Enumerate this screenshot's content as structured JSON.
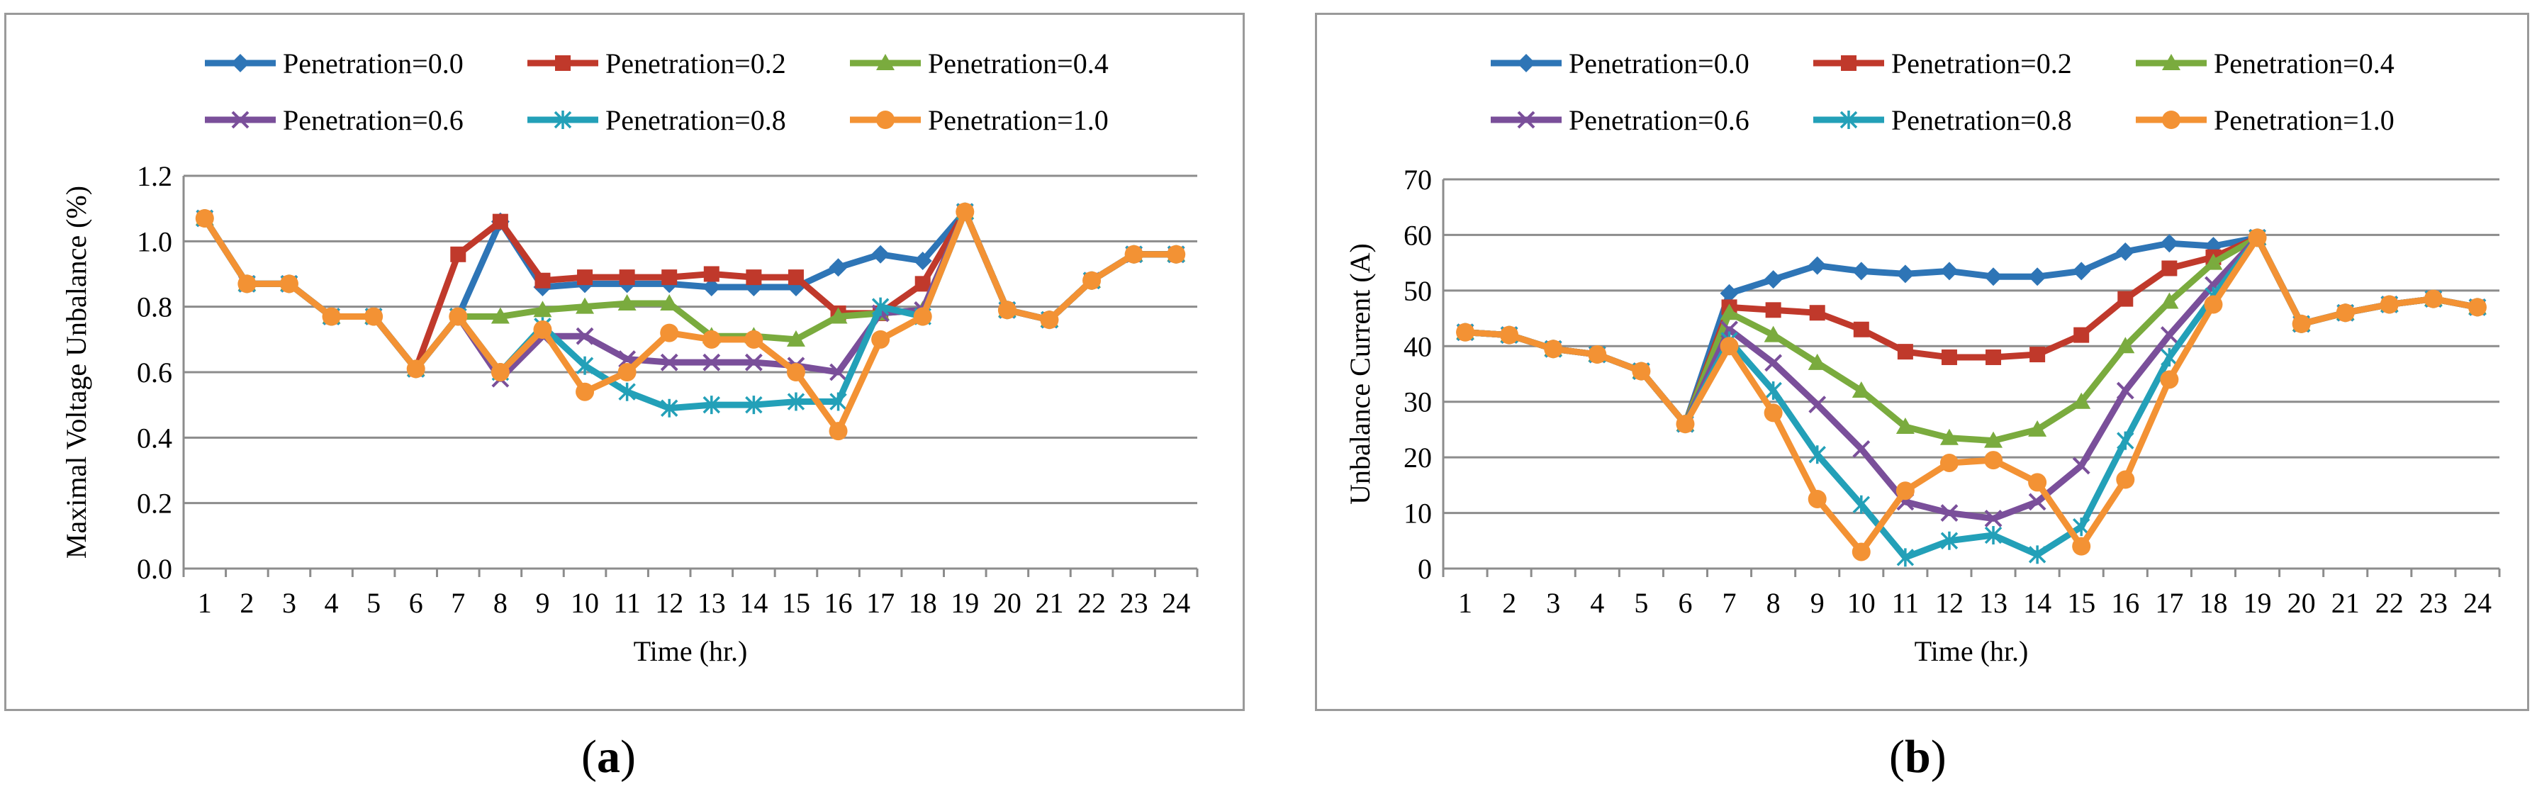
{
  "chart_data": [
    {
      "type": "line",
      "panel": "a",
      "ylabel": "Maximal  Voltage  Unbalance (%)",
      "xlabel": "Time  (hr.)",
      "ylim": [
        0,
        1.2
      ],
      "yticks": [
        "0.0",
        "0.2",
        "0.4",
        "0.6",
        "0.8",
        "1.0",
        "1.2"
      ],
      "ytick_values": [
        0,
        0.2,
        0.4,
        0.6,
        0.8,
        1.0,
        1.2
      ],
      "x": [
        "1",
        "2",
        "3",
        "4",
        "5",
        "6",
        "7",
        "8",
        "9",
        "10",
        "11",
        "12",
        "13",
        "14",
        "15",
        "16",
        "17",
        "18",
        "19",
        "20",
        "21",
        "22",
        "23",
        "24"
      ],
      "legend_position": "top",
      "series": [
        {
          "name": "Penetration=0.0",
          "color": "#2e75b6",
          "marker": "diamond",
          "values": [
            1.07,
            0.87,
            0.87,
            0.77,
            0.77,
            0.61,
            0.77,
            1.06,
            0.86,
            0.87,
            0.87,
            0.87,
            0.86,
            0.86,
            0.86,
            0.92,
            0.96,
            0.94,
            1.09,
            0.79,
            0.76,
            0.88,
            0.96,
            0.96
          ]
        },
        {
          "name": "Penetration=0.2",
          "color": "#c0392b",
          "marker": "square",
          "values": [
            1.07,
            0.87,
            0.87,
            0.77,
            0.77,
            0.61,
            0.96,
            1.06,
            0.88,
            0.89,
            0.89,
            0.89,
            0.9,
            0.89,
            0.89,
            0.78,
            0.78,
            0.87,
            1.09,
            0.79,
            0.76,
            0.88,
            0.96,
            0.96
          ]
        },
        {
          "name": "Penetration=0.4",
          "color": "#7aab3e",
          "marker": "triangle",
          "values": [
            1.07,
            0.87,
            0.87,
            0.77,
            0.77,
            0.61,
            0.77,
            0.77,
            0.79,
            0.8,
            0.81,
            0.81,
            0.71,
            0.71,
            0.7,
            0.77,
            0.78,
            0.79,
            1.09,
            0.79,
            0.76,
            0.88,
            0.96,
            0.96
          ]
        },
        {
          "name": "Penetration=0.6",
          "color": "#7a4f9a",
          "marker": "x",
          "values": [
            1.07,
            0.87,
            0.87,
            0.77,
            0.77,
            0.61,
            0.77,
            0.58,
            0.71,
            0.71,
            0.64,
            0.63,
            0.63,
            0.63,
            0.62,
            0.6,
            0.78,
            0.79,
            1.09,
            0.79,
            0.76,
            0.88,
            0.96,
            0.96
          ]
        },
        {
          "name": "Penetration=0.8",
          "color": "#23a0b8",
          "marker": "asterisk",
          "values": [
            1.07,
            0.87,
            0.87,
            0.77,
            0.77,
            0.61,
            0.77,
            0.6,
            0.74,
            0.62,
            0.54,
            0.49,
            0.5,
            0.5,
            0.51,
            0.51,
            0.8,
            0.77,
            1.09,
            0.79,
            0.76,
            0.88,
            0.96,
            0.96
          ]
        },
        {
          "name": "Penetration=1.0",
          "color": "#f39234",
          "marker": "circle",
          "values": [
            1.07,
            0.87,
            0.87,
            0.77,
            0.77,
            0.61,
            0.77,
            0.6,
            0.73,
            0.54,
            0.6,
            0.72,
            0.7,
            0.7,
            0.6,
            0.42,
            0.7,
            0.77,
            1.09,
            0.79,
            0.76,
            0.88,
            0.96,
            0.96
          ]
        }
      ]
    },
    {
      "type": "line",
      "panel": "b",
      "ylabel": "Unbalance Current  (A)",
      "xlabel": "Time  (hr.)",
      "ylim": [
        0,
        70
      ],
      "yticks": [
        "0",
        "10",
        "20",
        "30",
        "40",
        "50",
        "60",
        "70"
      ],
      "ytick_values": [
        0,
        10,
        20,
        30,
        40,
        50,
        60,
        70
      ],
      "x": [
        "1",
        "2",
        "3",
        "4",
        "5",
        "6",
        "7",
        "8",
        "9",
        "10",
        "11",
        "12",
        "13",
        "14",
        "15",
        "16",
        "17",
        "18",
        "19",
        "20",
        "21",
        "22",
        "23",
        "24"
      ],
      "legend_position": "top",
      "series": [
        {
          "name": "Penetration=0.0",
          "color": "#2e75b6",
          "marker": "diamond",
          "values": [
            42.5,
            42,
            39.5,
            38.5,
            35.5,
            26,
            49.5,
            52,
            54.5,
            53.5,
            53,
            53.5,
            52.5,
            52.5,
            53.5,
            57,
            58.5,
            58,
            59.5,
            44,
            46,
            47.5,
            48.5,
            47
          ]
        },
        {
          "name": "Penetration=0.2",
          "color": "#c0392b",
          "marker": "square",
          "values": [
            42.5,
            42,
            39.5,
            38.5,
            35.5,
            26,
            47,
            46.5,
            46,
            43,
            39,
            38,
            38,
            38.5,
            42,
            48.5,
            54,
            56,
            59.5,
            44,
            46,
            47.5,
            48.5,
            47
          ]
        },
        {
          "name": "Penetration=0.4",
          "color": "#7aab3e",
          "marker": "triangle",
          "values": [
            42.5,
            42,
            39.5,
            38.5,
            35.5,
            26,
            46,
            42,
            37,
            32,
            25.5,
            23.5,
            23,
            25,
            30,
            40,
            48,
            55,
            59.5,
            44,
            46,
            47.5,
            48.5,
            47
          ]
        },
        {
          "name": "Penetration=0.6",
          "color": "#7a4f9a",
          "marker": "x",
          "values": [
            42.5,
            42,
            39.5,
            38.5,
            35.5,
            26,
            43,
            37,
            29.5,
            21.5,
            12,
            10,
            9,
            12,
            18.5,
            32,
            42,
            51,
            59.5,
            44,
            46,
            47.5,
            48.5,
            47
          ]
        },
        {
          "name": "Penetration=0.8",
          "color": "#23a0b8",
          "marker": "asterisk",
          "values": [
            42.5,
            42,
            39.5,
            38.5,
            35.5,
            26,
            41,
            32,
            20.5,
            11.5,
            2,
            5,
            6,
            2.5,
            7.5,
            23,
            38,
            49,
            59.5,
            44,
            46,
            47.5,
            48.5,
            47
          ]
        },
        {
          "name": "Penetration=1.0",
          "color": "#f39234",
          "marker": "circle",
          "values": [
            42.5,
            42,
            39.5,
            38.5,
            35.5,
            26,
            40,
            28,
            12.5,
            3,
            14,
            19,
            19.5,
            15.5,
            4,
            16,
            34,
            47.5,
            59.5,
            44,
            46,
            47.5,
            48.5,
            47
          ]
        }
      ]
    }
  ],
  "labels": {
    "panel_a": "(a)",
    "panel_a_letter": "a",
    "panel_b": "(b)",
    "panel_b_letter": "b"
  }
}
